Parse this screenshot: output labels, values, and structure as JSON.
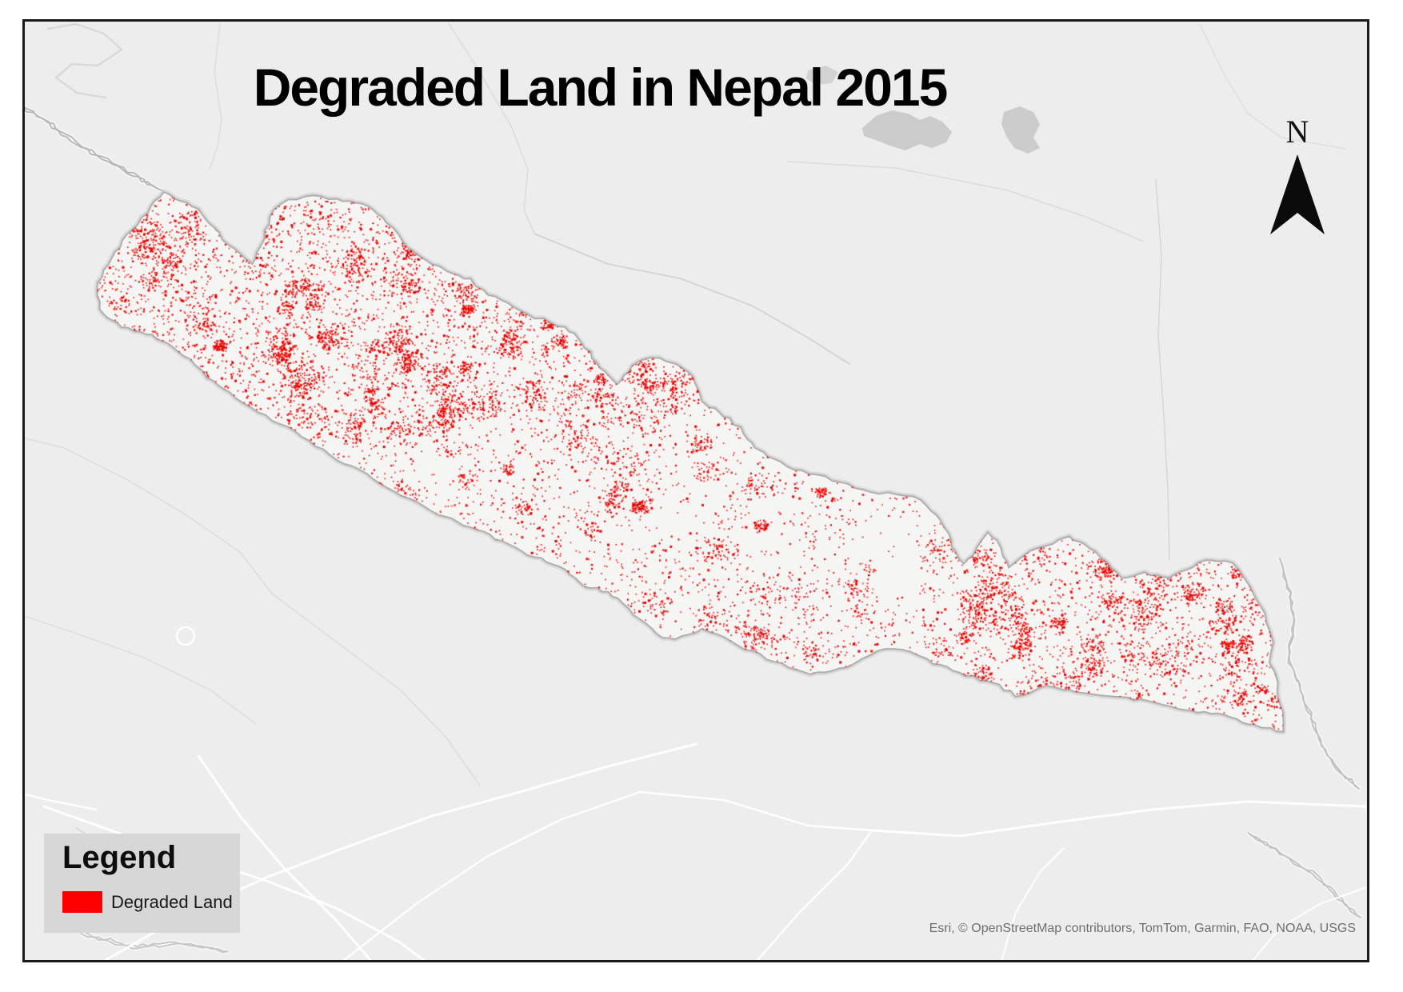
{
  "title": "Degraded Land in Nepal 2015",
  "north_arrow_label": "N",
  "legend": {
    "title": "Legend",
    "items": [
      {
        "label": "Degraded Land",
        "color": "#ff0000"
      }
    ]
  },
  "attribution": "Esri, © OpenStreetMap contributors, TomTom, Garmin, FAO, NOAA, USGS",
  "map": {
    "region": "Nepal",
    "layers": [
      {
        "name": "Degraded Land",
        "type": "dot-raster",
        "color": "#e60000"
      }
    ],
    "basemap": {
      "background": "#ededed",
      "country_fill": "#f5f5f4",
      "country_border": "#a6a6a6",
      "road_color": "#ffffff",
      "frame_border": "#1a1a1a",
      "page_background": "#ffffff",
      "legend_background": "#d7d7d7",
      "attribution_color": "#6e6e6e"
    }
  }
}
